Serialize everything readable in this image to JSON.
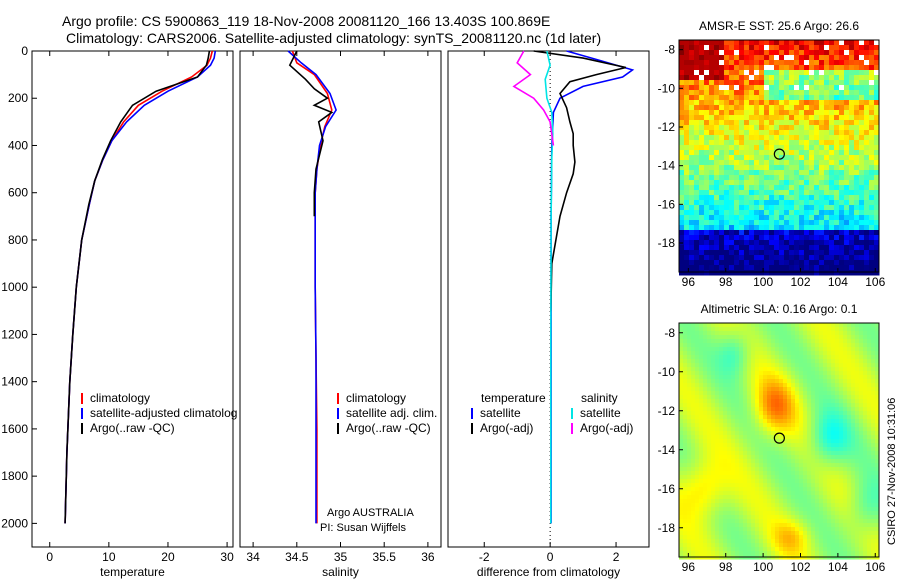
{
  "header": {
    "title_line1": "Argo profile: CS 5900863_119 18-Nov-2008 20081120_166 13.403S 100.869E",
    "title_line2": "Climatology: CARS2006. Satellite-adjusted climatology: synTS_20081120.nc (1d later)"
  },
  "colors": {
    "climatology": "#ff0000",
    "satellite": "#0000ff",
    "argo": "#000000",
    "satellite_salinity": "#00e5e5",
    "argo_salinity_diff": "#ff00ff"
  },
  "credit": {
    "vertical_text": "CSIRO 27-Nov-2008 10:31:06",
    "argo_country": "Argo AUSTRALIA",
    "pi": "PI: Susan Wijffels"
  },
  "chart_data": [
    {
      "id": "temperature",
      "type": "line",
      "xlabel": "temperature",
      "ylabel": "",
      "xlim": [
        -3,
        31
      ],
      "ylim": [
        2100,
        0
      ],
      "xticks": [
        0,
        10,
        20,
        30
      ],
      "yticks": [
        0,
        200,
        400,
        600,
        800,
        1000,
        1200,
        1400,
        1600,
        1800,
        2000
      ],
      "legend": {
        "placement": "bottom-right",
        "entries": [
          {
            "label": "climatology",
            "color": "#ff0000"
          },
          {
            "label": "satellite-adjusted climatolog",
            "color": "#0000ff"
          },
          {
            "label": "Argo(..raw -QC)",
            "color": "#000000"
          }
        ]
      },
      "series": [
        {
          "color": "#ff0000",
          "x": [
            27.5,
            27.2,
            26.6,
            24,
            19,
            15,
            12.5,
            10.5,
            9,
            7.6,
            6.7,
            5.4,
            4.5,
            3.9,
            3.4,
            2.9,
            2.6
          ],
          "y": [
            0,
            30,
            60,
            110,
            170,
            230,
            300,
            380,
            460,
            550,
            650,
            800,
            1000,
            1200,
            1400,
            1700,
            2000
          ]
        },
        {
          "color": "#0000ff",
          "x": [
            28,
            27.8,
            27.2,
            25,
            20,
            16,
            13,
            10.5,
            9,
            7.6,
            6.7,
            5.4,
            4.5,
            3.9,
            3.4,
            2.9,
            2.6
          ],
          "y": [
            0,
            30,
            60,
            110,
            170,
            230,
            300,
            380,
            460,
            550,
            650,
            800,
            1000,
            1200,
            1400,
            1700,
            2000
          ]
        },
        {
          "color": "#000000",
          "x": [
            27,
            26.8,
            26.5,
            25,
            18,
            14,
            12,
            10.3,
            8.9,
            7.6,
            6.6,
            5.4,
            4.5,
            3.9,
            3.4,
            2.9,
            2.6
          ],
          "y": [
            0,
            30,
            60,
            110,
            170,
            230,
            300,
            380,
            460,
            550,
            650,
            800,
            1000,
            1200,
            1400,
            1700,
            2000
          ]
        }
      ]
    },
    {
      "id": "salinity",
      "type": "line",
      "xlabel": "salinity",
      "xlim": [
        33.85,
        36.15
      ],
      "ylim": [
        2100,
        0
      ],
      "xticks": [
        34,
        34.5,
        35,
        35.5,
        36
      ],
      "legend": {
        "placement": "bottom-right",
        "entries": [
          {
            "label": "climatology",
            "color": "#ff0000"
          },
          {
            "label": "satellite adj. clim.",
            "color": "#0000ff"
          },
          {
            "label": "Argo(..raw -QC)",
            "color": "#000000"
          }
        ]
      },
      "series": [
        {
          "color": "#ff0000",
          "x": [
            34.45,
            34.5,
            34.7,
            34.85,
            34.9,
            34.82,
            34.77,
            34.73,
            34.71,
            34.71,
            34.71,
            34.72,
            34.73,
            34.73,
            34.73
          ],
          "y": [
            0,
            50,
            100,
            180,
            250,
            320,
            400,
            500,
            600,
            800,
            1000,
            1300,
            1600,
            1800,
            2000
          ]
        },
        {
          "color": "#0000ff",
          "x": [
            34.4,
            34.55,
            34.72,
            34.88,
            34.95,
            34.83,
            34.76,
            34.73,
            34.71,
            34.71,
            34.71,
            34.72,
            34.72,
            34.72,
            34.72
          ],
          "y": [
            0,
            50,
            100,
            180,
            250,
            320,
            400,
            500,
            600,
            800,
            1000,
            1300,
            1600,
            1800,
            2000
          ]
        },
        {
          "color": "#000000",
          "x": [
            34.5,
            34.42,
            34.6,
            34.7,
            34.85,
            34.7,
            34.9,
            34.75,
            34.8,
            34.72,
            34.7,
            34.7
          ],
          "y": [
            0,
            60,
            120,
            160,
            200,
            230,
            260,
            300,
            380,
            500,
            600,
            700
          ]
        }
      ]
    },
    {
      "id": "difference",
      "type": "line",
      "xlabel": "difference from climatology",
      "xlim": [
        -3.1,
        3
      ],
      "ylim": [
        2100,
        0
      ],
      "xticks": [
        -2,
        0,
        2
      ],
      "legend": {
        "placement": "bottom-center",
        "entries": [
          {
            "label": "temperature",
            "color": null
          },
          {
            "label": "satellite",
            "color": "#0000ff"
          },
          {
            "label": "Argo(-adj)",
            "color": "#000000"
          },
          {
            "label": "salinity",
            "color": null
          },
          {
            "label": "satellite",
            "color": "#00e5e5"
          },
          {
            "label": "Argo(-adj)",
            "color": "#ff00ff"
          }
        ]
      },
      "series": [
        {
          "color": "#0000ff",
          "x": [
            0.5,
            1.5,
            2.5,
            2.2,
            1.0,
            0.3,
            0.1,
            0.05,
            0.03,
            0.03,
            0.03
          ],
          "y": [
            0,
            40,
            80,
            110,
            150,
            200,
            260,
            400,
            700,
            1200,
            2000
          ]
        },
        {
          "color": "#000000",
          "x": [
            -0.5,
            1.0,
            2.3,
            1.4,
            0.6,
            0.3,
            0.5,
            0.6,
            0.7,
            0.7,
            0.75,
            0.7,
            0.5,
            0.3,
            0.05,
            0.02
          ],
          "y": [
            0,
            30,
            70,
            100,
            130,
            180,
            240,
            300,
            350,
            400,
            470,
            520,
            600,
            700,
            900,
            1100
          ]
        },
        {
          "color": "#00e5e5",
          "x": [
            -0.1,
            0.0,
            -0.15,
            -0.1,
            0.05,
            0.08,
            0.05,
            0.03,
            0.02,
            0.02
          ],
          "y": [
            0,
            60,
            120,
            200,
            260,
            350,
            450,
            700,
            1200,
            2000
          ]
        },
        {
          "color": "#ff00ff",
          "x": [
            -0.8,
            -1.0,
            -0.6,
            -1.1,
            -0.5,
            -0.2,
            0.0,
            0.1
          ],
          "y": [
            0,
            50,
            100,
            150,
            200,
            250,
            300,
            400
          ]
        }
      ]
    },
    {
      "id": "amsre_sst",
      "type": "heatmap",
      "title": "AMSR-E SST: 25.6 Argo: 26.6",
      "xlim": [
        95.5,
        106.2
      ],
      "ylim": [
        -19.5,
        -7.5
      ],
      "xticks": [
        96,
        98,
        100,
        102,
        104,
        106
      ],
      "yticks": [
        -8,
        -10,
        -12,
        -14,
        -16,
        -18
      ],
      "marker": {
        "lon": 100.869,
        "lat": -13.403
      }
    },
    {
      "id": "altimetric_sla",
      "type": "heatmap",
      "title": "Altimetric SLA: 0.16 Argo: 0.1",
      "xlim": [
        95.5,
        106.2
      ],
      "ylim": [
        -19.5,
        -7.5
      ],
      "xticks": [
        96,
        98,
        100,
        102,
        104,
        106
      ],
      "yticks": [
        -8,
        -10,
        -12,
        -14,
        -16,
        -18
      ],
      "marker": {
        "lon": 100.869,
        "lat": -13.403
      }
    }
  ]
}
